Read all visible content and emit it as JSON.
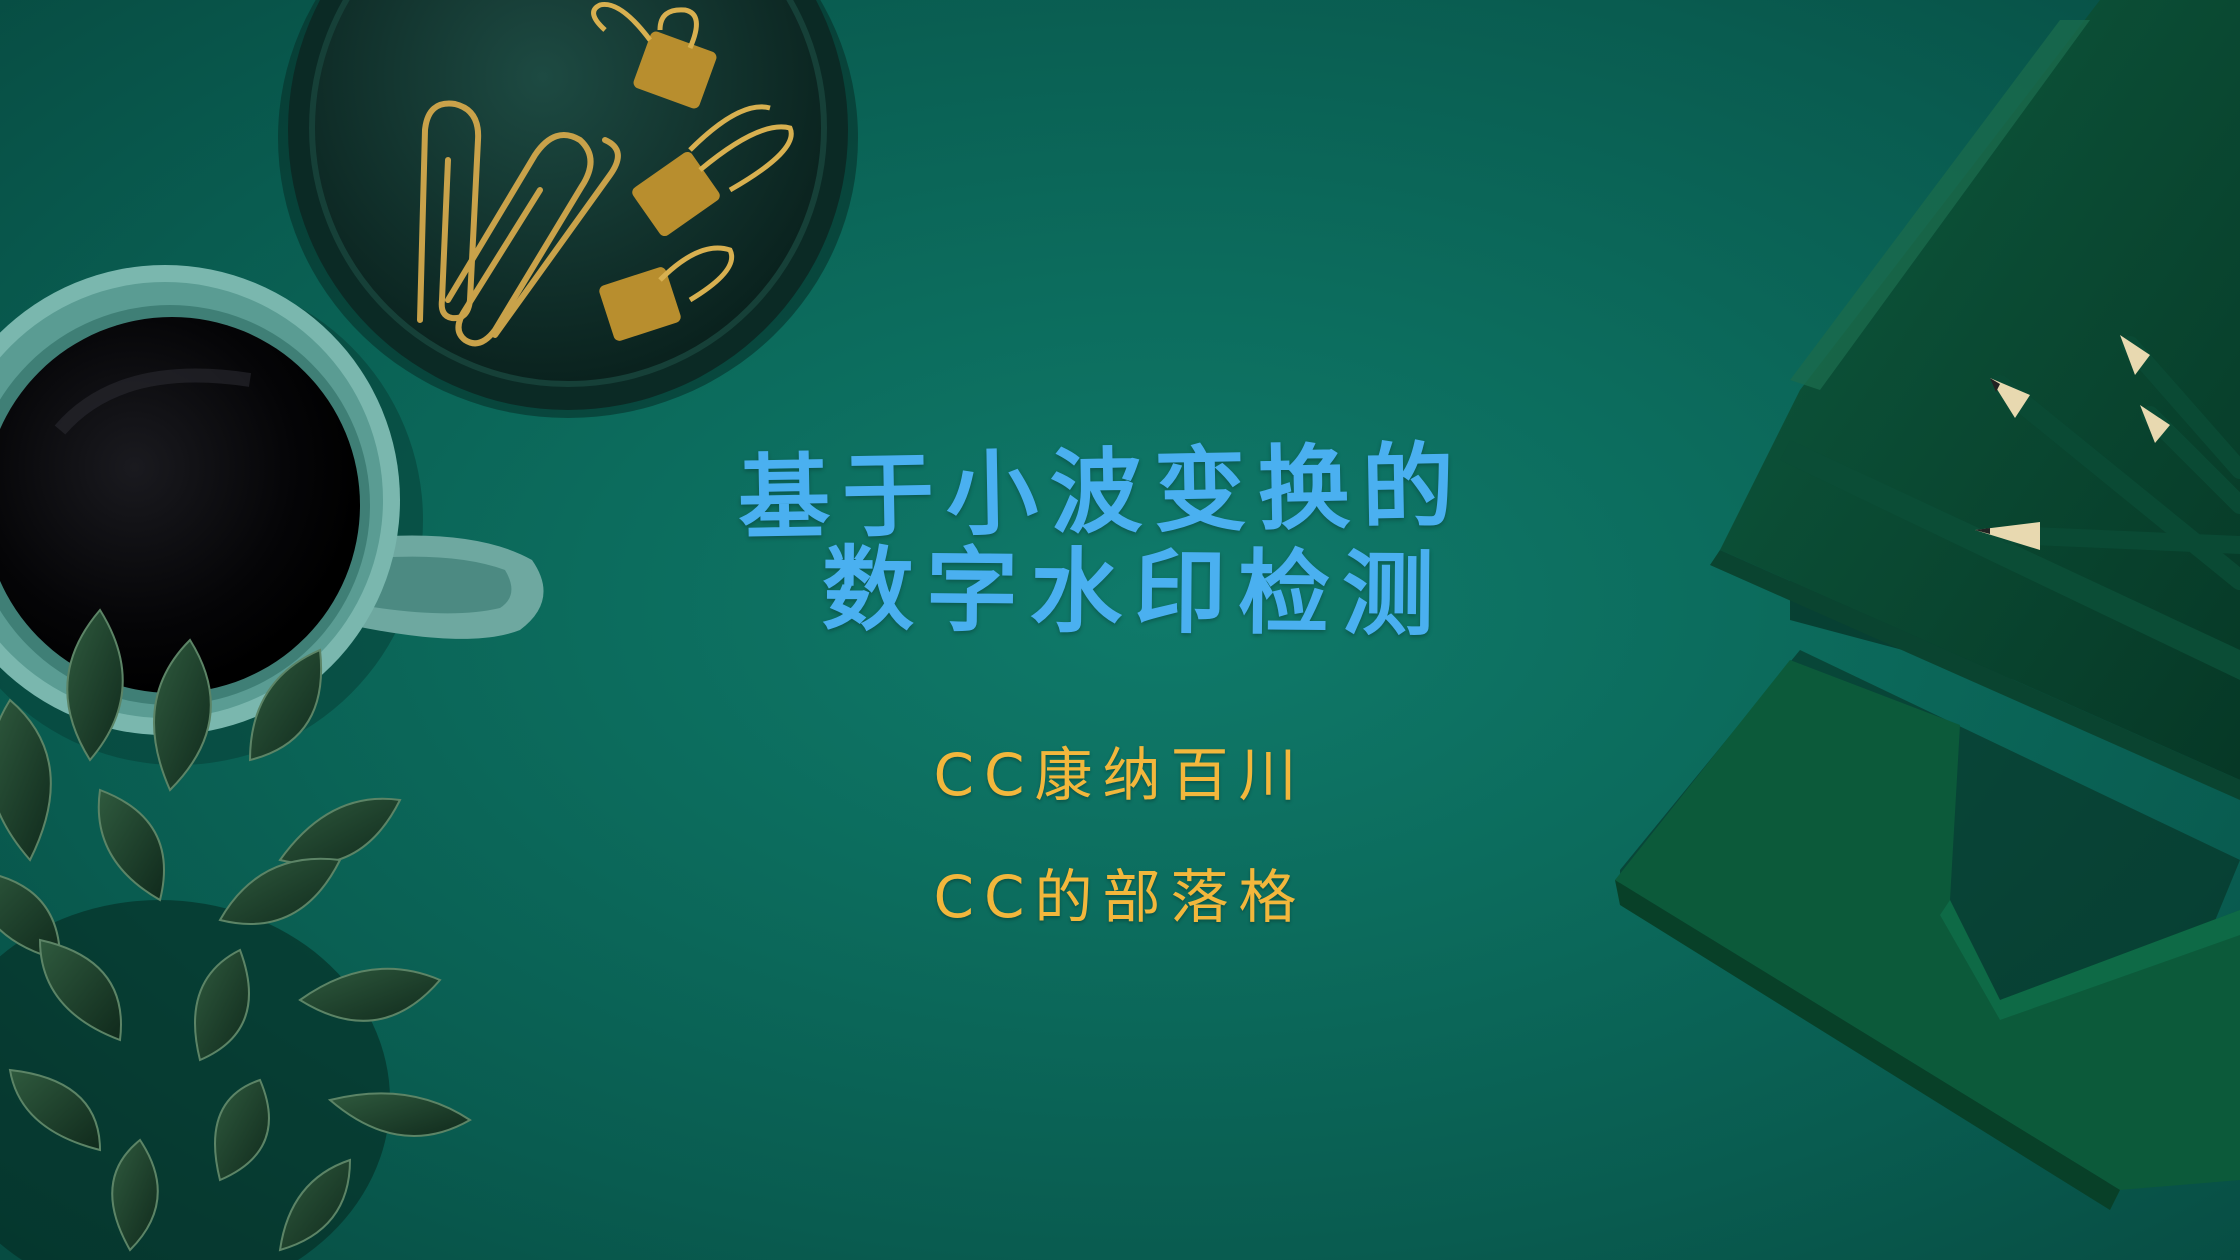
{
  "title": {
    "line1": "基于小波变换的",
    "line2": "数字水印检测"
  },
  "subtitles": {
    "author": "CC康纳百川",
    "blog": "CC的部落格"
  },
  "colors": {
    "background": "#0c6c5d",
    "title": "#4ab0f0",
    "subtitle": "#f2b73c"
  }
}
